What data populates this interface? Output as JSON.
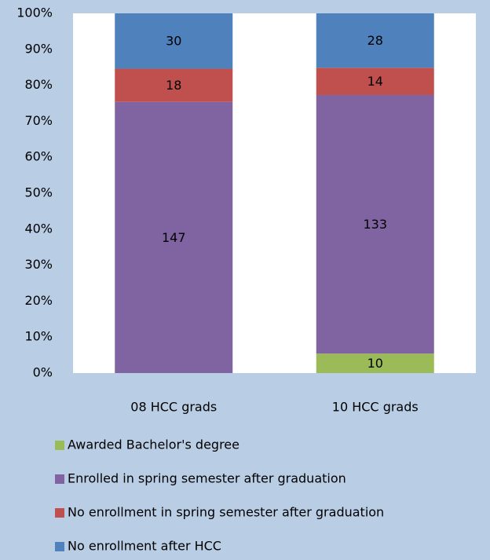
{
  "chart_data": {
    "type": "bar",
    "stacking": "percent",
    "categories": [
      "08 HCC grads",
      "10 HCC grads"
    ],
    "series": [
      {
        "name": "Awarded Bachelor's degree",
        "color": "#9bbb59",
        "values": [
          null,
          10
        ]
      },
      {
        "name": "Enrolled in spring semester after graduation",
        "color": "#8064a2",
        "values": [
          147,
          133
        ]
      },
      {
        "name": "No enrollment in spring semester after graduation",
        "color": "#c0504d",
        "values": [
          18,
          14
        ]
      },
      {
        "name": "No enrollment after HCC",
        "color": "#4f81bd",
        "values": [
          30,
          28
        ]
      }
    ],
    "ylim": [
      0,
      100
    ],
    "yticks": [
      {
        "value": 0,
        "label": "0%"
      },
      {
        "value": 10,
        "label": "10%"
      },
      {
        "value": 20,
        "label": "20%"
      },
      {
        "value": 30,
        "label": "30%"
      },
      {
        "value": 40,
        "label": "40%"
      },
      {
        "value": 50,
        "label": "50%"
      },
      {
        "value": 60,
        "label": "60%"
      },
      {
        "value": 70,
        "label": "70%"
      },
      {
        "value": 80,
        "label": "80%"
      },
      {
        "value": 90,
        "label": "90%"
      },
      {
        "value": 100,
        "label": "100%"
      }
    ],
    "grid": false,
    "legend": "bottom"
  }
}
